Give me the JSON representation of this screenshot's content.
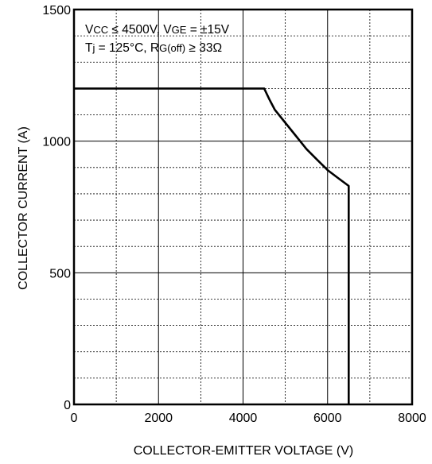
{
  "chart_data": {
    "type": "line",
    "xlabel": "COLLECTOR-EMITTER VOLTAGE (V)",
    "ylabel": "COLLECTOR CURRENT (A)",
    "xlim": [
      0,
      8000
    ],
    "ylim": [
      0,
      1500
    ],
    "x_ticks": [
      "0",
      "2000",
      "4000",
      "6000",
      "8000"
    ],
    "y_ticks": [
      "0",
      "500",
      "1000",
      "1500"
    ],
    "grid": true,
    "conditions": {
      "line1": {
        "vcc_main": "V",
        "vcc_sub": "CC",
        "vcc_rest": " ≤ 4500V, V",
        "vge_sub": "GE",
        "vge_rest": " = ±15V"
      },
      "line2": {
        "tj_main": "T",
        "tj_sub": "j",
        "tj_rest": " = 125°C, R",
        "rg_sub": "G(off)",
        "rg_rest": " ≥ 33Ω"
      }
    },
    "series": [
      {
        "x": [
          0,
          4500,
          4620,
          4750,
          5000,
          5250,
          5500,
          5750,
          6000,
          6250,
          6500,
          6500
        ],
        "y": [
          1200,
          1200,
          1160,
          1120,
          1070,
          1020,
          970,
          930,
          890,
          860,
          830,
          0
        ]
      }
    ]
  }
}
